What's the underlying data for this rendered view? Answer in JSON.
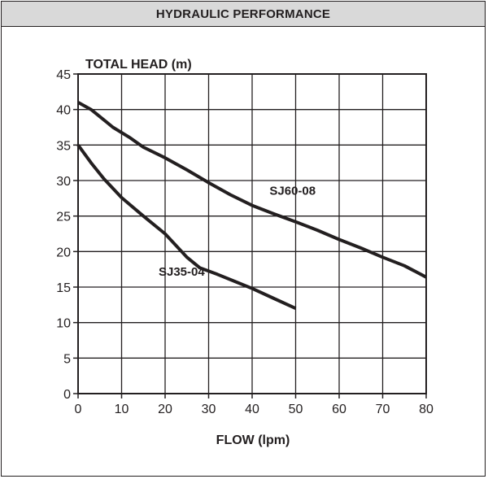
{
  "header": {
    "title": "HYDRAULIC PERFORMANCE"
  },
  "chart_data": {
    "type": "line",
    "ylabel": "TOTAL HEAD (m)",
    "xlabel": "FLOW (lpm)",
    "xlim": [
      0,
      80
    ],
    "ylim": [
      0,
      45
    ],
    "xticks": [
      0,
      10,
      20,
      30,
      40,
      50,
      60,
      70,
      80
    ],
    "yticks": [
      0,
      5,
      10,
      15,
      20,
      25,
      30,
      35,
      40,
      45
    ],
    "grid": true,
    "series": [
      {
        "name": "SJ60-08",
        "x": [
          0,
          3,
          5,
          8,
          12,
          15,
          20,
          25,
          30,
          35,
          40,
          45,
          50,
          55,
          60,
          65,
          70,
          75,
          80
        ],
        "y": [
          41,
          40,
          39,
          37.5,
          36,
          34.7,
          33.2,
          31.5,
          29.7,
          28,
          26.5,
          25.3,
          24.2,
          23,
          21.7,
          20.5,
          19.2,
          18,
          16.4
        ],
        "label_at": [
          44,
          28
        ]
      },
      {
        "name": "SJ35-04",
        "x": [
          0,
          3,
          6,
          10,
          15,
          20,
          25,
          28,
          32,
          36,
          40,
          45,
          50
        ],
        "y": [
          35,
          32.5,
          30.2,
          27.6,
          25,
          22.5,
          19.2,
          17.7,
          16.8,
          15.8,
          14.8,
          13.4,
          12
        ],
        "label_at": [
          18.5,
          16.6
        ]
      }
    ],
    "colors": {
      "line": "#231f20",
      "grid": "#231f20"
    }
  }
}
